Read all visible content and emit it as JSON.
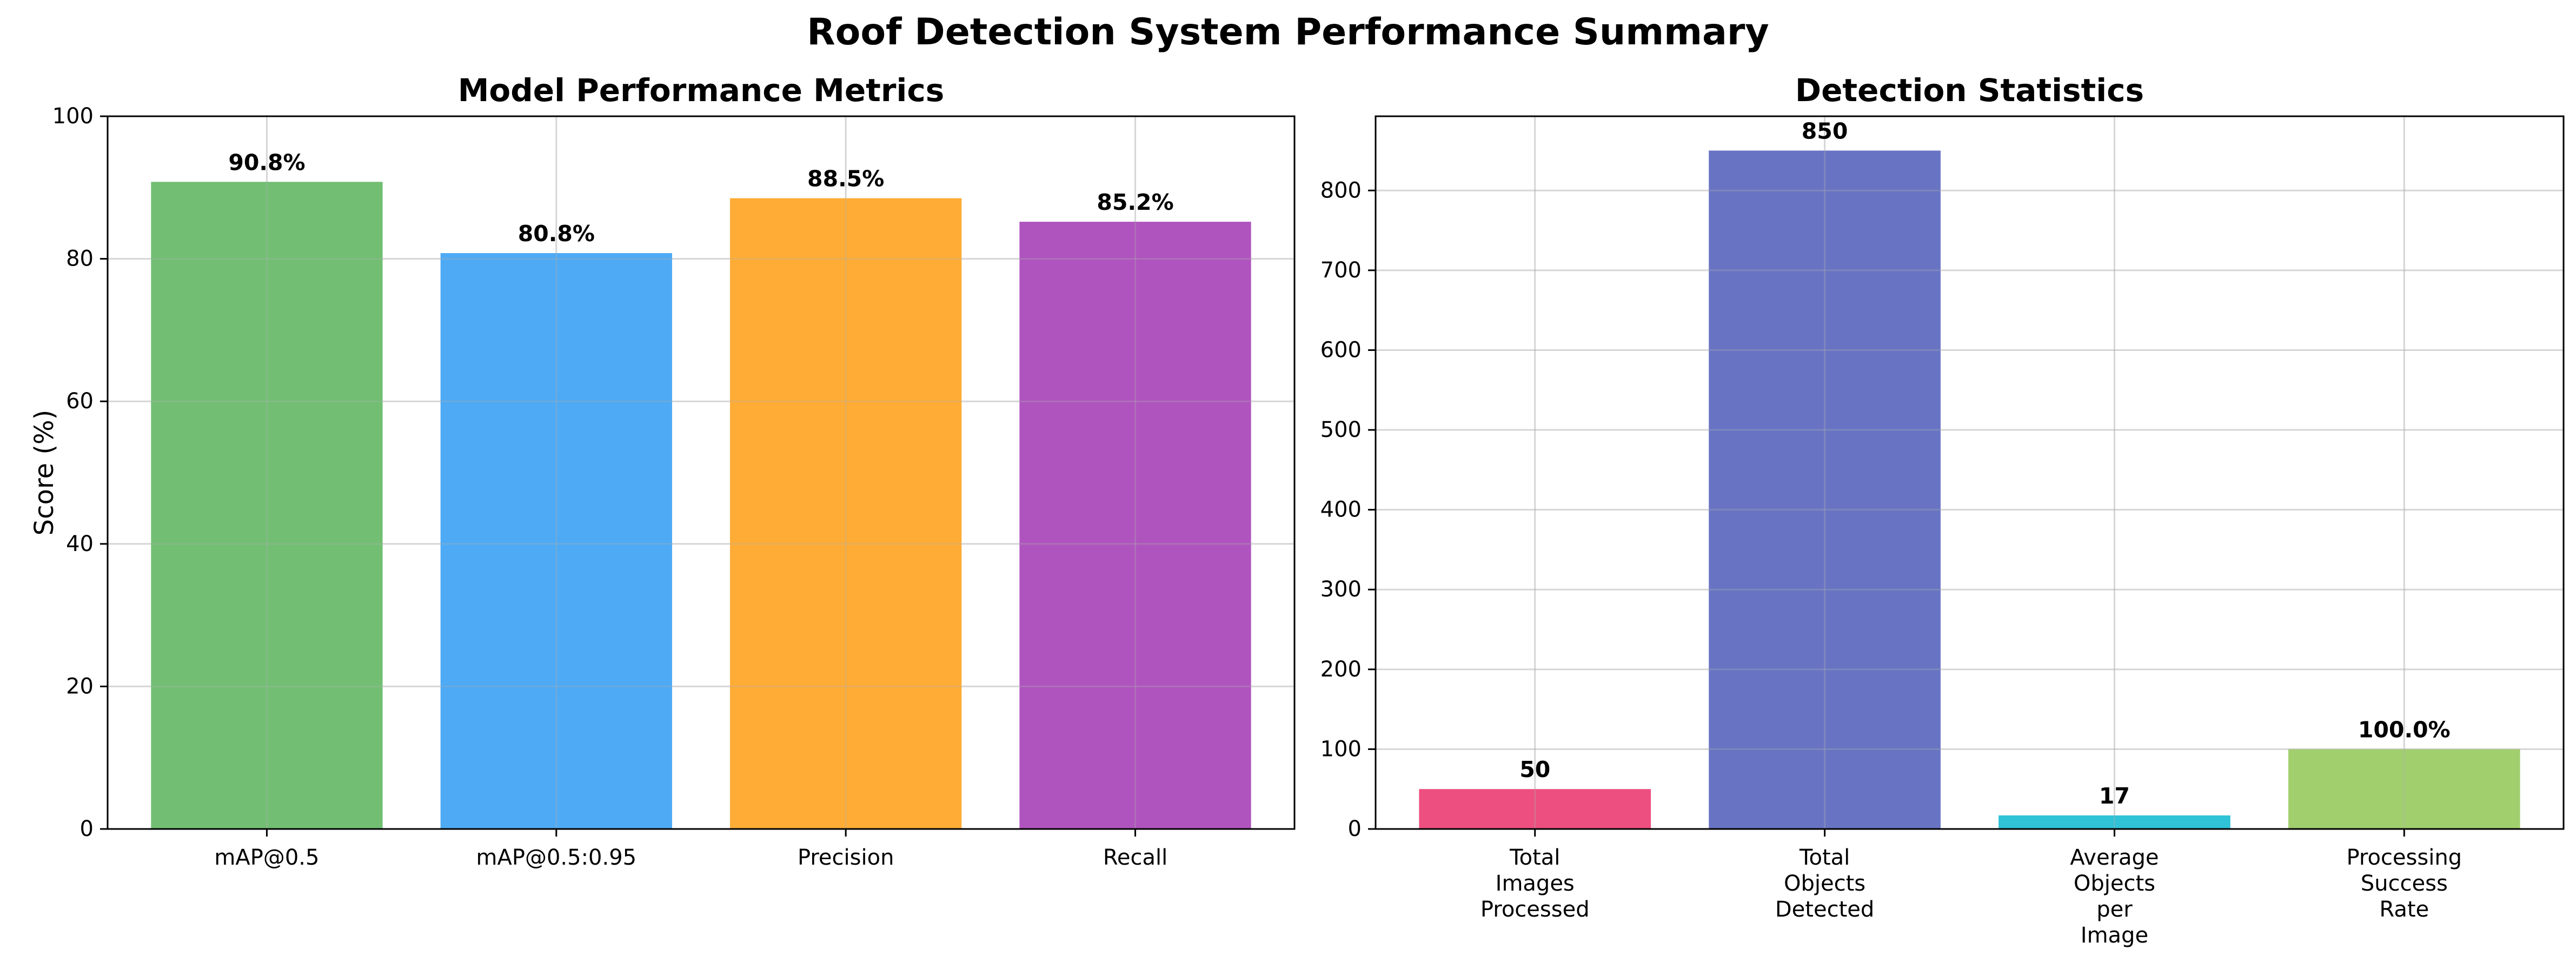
{
  "figure_title": "Roof Detection System Performance Summary",
  "chart_data": [
    {
      "type": "bar",
      "title": "Model Performance Metrics",
      "xlabel": "",
      "ylabel": "Score (%)",
      "ylim": [
        0,
        100
      ],
      "yticks": [
        0,
        20,
        40,
        60,
        80,
        100
      ],
      "grid": true,
      "categories": [
        [
          "mAP@0.5"
        ],
        [
          "mAP@0.5:0.95"
        ],
        [
          "Precision"
        ],
        [
          "Recall"
        ]
      ],
      "values": [
        90.8,
        80.8,
        88.5,
        85.2
      ],
      "data_labels": [
        "90.8%",
        "80.8%",
        "88.5%",
        "85.2%"
      ],
      "colors": [
        "#72bf73",
        "#4eaaf4",
        "#feac35",
        "#af54be"
      ]
    },
    {
      "type": "bar",
      "title": "Detection Statistics",
      "xlabel": "",
      "ylabel": "",
      "ylim": [
        0,
        893
      ],
      "yticks": [
        0,
        100,
        200,
        300,
        400,
        500,
        600,
        700,
        800
      ],
      "grid": true,
      "categories": [
        [
          "Total",
          "Images",
          "Processed"
        ],
        [
          "Total",
          "Objects",
          "Detected"
        ],
        [
          "Average",
          "Objects",
          "per",
          "Image"
        ],
        [
          "Processing",
          "Success",
          "Rate"
        ]
      ],
      "values": [
        50,
        850,
        17,
        100
      ],
      "data_labels": [
        "50",
        "850",
        "17",
        "100.0%"
      ],
      "colors": [
        "#ed4f80",
        "#6874c3",
        "#30c2d6",
        "#a1cf6e"
      ]
    }
  ]
}
